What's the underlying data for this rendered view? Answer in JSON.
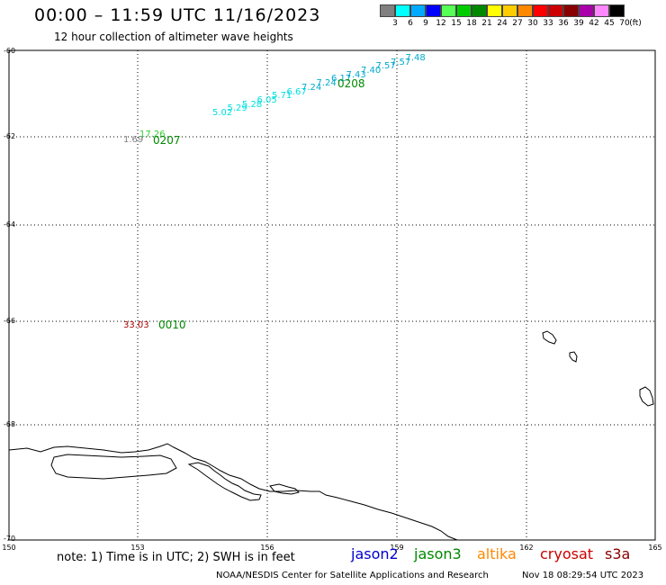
{
  "header": {
    "title": "00:00 – 11:59 UTC 11/16/2023",
    "subtitle": "12 hour collection of altimeter wave heights"
  },
  "scale": {
    "labels": [
      "3",
      "6",
      "9",
      "12",
      "15",
      "18",
      "21",
      "24",
      "27",
      "30",
      "33",
      "36",
      "39",
      "42",
      "45",
      "70"
    ],
    "unit": "(ft)",
    "colors": [
      "#808080",
      "#00ffff",
      "#00aaff",
      "#0000ff",
      "#55ff55",
      "#00cc00",
      "#008800",
      "#ffff00",
      "#ffcc00",
      "#ff8800",
      "#ff0000",
      "#cc0000",
      "#880000",
      "#aa00aa",
      "#ff88ff",
      "#000000"
    ]
  },
  "axes": {
    "lat_labels": [
      "-60",
      "-62",
      "-64",
      "-66",
      "-68",
      "-70"
    ],
    "lon_labels": [
      "150",
      "153",
      "156",
      "159",
      "162",
      "165"
    ]
  },
  "observations": {
    "track_0208": {
      "time_label": "0208",
      "values": [
        "5.02",
        "5.29",
        "5.28",
        "6.05",
        "5.71",
        "6.67",
        "7.24",
        "7.24",
        "6.17",
        "7.43",
        "7.40",
        "7.57",
        "7.57",
        "7.48"
      ]
    },
    "track_0207": {
      "time_label": "0207",
      "values": [
        "17.26",
        "1.69"
      ]
    },
    "track_0010": {
      "time_label": "0010",
      "values": [
        "33.03"
      ]
    }
  },
  "footer": {
    "note": "note:  1) Time is in UTC;  2) SWH is in feet",
    "satellites": [
      {
        "name": "jason2",
        "color": "#0000cc"
      },
      {
        "name": "jason3",
        "color": "#008800"
      },
      {
        "name": "altika",
        "color": "#ff8800"
      },
      {
        "name": "cryosat",
        "color": "#cc0000"
      },
      {
        "name": "s3a",
        "color": "#880000"
      }
    ],
    "credit": "NOAA/NESDIS Center for Satellite Applications and Research",
    "generated": "Nov 18 08:29:54 UTC 2023"
  }
}
